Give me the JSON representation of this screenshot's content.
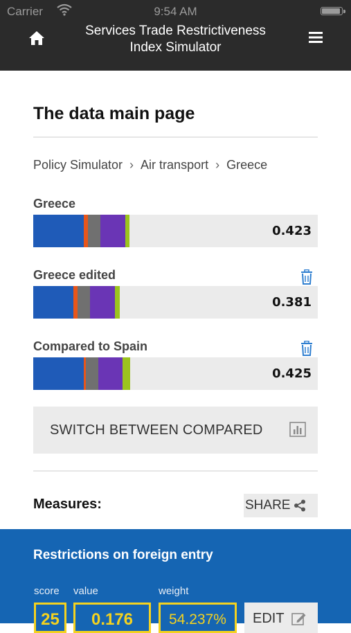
{
  "status_bar": {
    "carrier": "Carrier",
    "time": "9:54 AM"
  },
  "header": {
    "title": "Services Trade Restrictiveness Index Simulator",
    "home_icon": "home-icon",
    "menu_icon": "menu-icon"
  },
  "page": {
    "title": "The data main page"
  },
  "breadcrumb": {
    "items": [
      "Policy Simulator",
      "Air transport",
      "Greece"
    ],
    "separator": "›"
  },
  "colors": {
    "blue": "#1f5bb8",
    "orange": "#e8561b",
    "gray": "#707070",
    "purple": "#6a35b5",
    "green": "#9cc31f",
    "track": "#ebebeb",
    "link_blue": "#2f7fd0",
    "panel_blue": "#1565b3",
    "yellow": "#f4d21f"
  },
  "bars": [
    {
      "label": "Greece",
      "value": "0.423",
      "deletable": false,
      "segments": [
        {
          "color": "blue",
          "share": 0.177
        },
        {
          "color": "orange",
          "share": 0.015
        },
        {
          "color": "gray",
          "share": 0.044
        },
        {
          "color": "purple",
          "share": 0.088
        },
        {
          "color": "green",
          "share": 0.015
        }
      ]
    },
    {
      "label": "Greece edited",
      "value": "0.381",
      "deletable": true,
      "segments": [
        {
          "color": "blue",
          "share": 0.141
        },
        {
          "color": "orange",
          "share": 0.015
        },
        {
          "color": "gray",
          "share": 0.044
        },
        {
          "color": "purple",
          "share": 0.088
        },
        {
          "color": "green",
          "share": 0.015
        }
      ]
    },
    {
      "label": "Compared to Spain",
      "value": "0.425",
      "deletable": true,
      "segments": [
        {
          "color": "blue",
          "share": 0.177
        },
        {
          "color": "orange",
          "share": 0.007
        },
        {
          "color": "gray",
          "share": 0.044
        },
        {
          "color": "purple",
          "share": 0.085
        },
        {
          "color": "green",
          "share": 0.027
        }
      ]
    }
  ],
  "switch_button": {
    "label": "SWITCH BETWEEN COMPARED",
    "icon": "bar-chart-icon"
  },
  "measures": {
    "label": "Measures:",
    "share_label": "SHARE",
    "share_icon": "share-icon"
  },
  "panel": {
    "title": "Restrictions on foreign entry",
    "captions": {
      "score": "score",
      "value": "value",
      "weight": "weight"
    },
    "score": "25",
    "value": "0.176",
    "weight": "54.237%",
    "edit_label": "EDIT",
    "edit_icon": "edit-icon"
  }
}
